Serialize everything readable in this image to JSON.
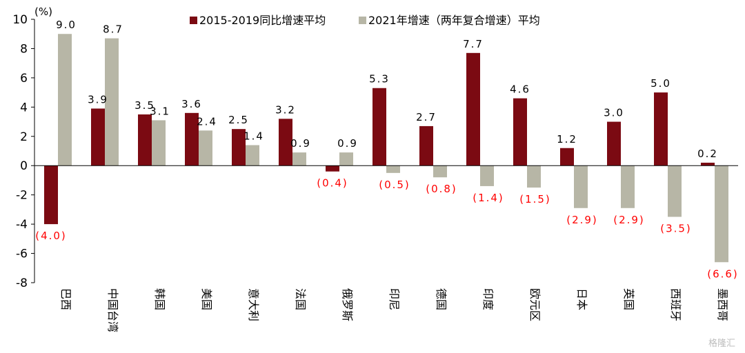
{
  "chart_data": {
    "type": "bar",
    "unit": "(%)",
    "categories": [
      "巴西",
      "中国台湾",
      "韩国",
      "美国",
      "意大利",
      "法国",
      "俄罗斯",
      "印尼",
      "德国",
      "印度",
      "欧元区",
      "日本",
      "英国",
      "西班牙",
      "墨西哥"
    ],
    "series": [
      {
        "name": "2015-2019同比增速平均",
        "color": "#7b0a12",
        "values": [
          -4.0,
          3.9,
          3.5,
          3.6,
          2.5,
          3.2,
          -0.4,
          5.3,
          2.7,
          7.7,
          4.6,
          1.2,
          3.0,
          5.0,
          0.2
        ],
        "labels": [
          "(4.0)",
          "3.9",
          "3.5",
          "3.6",
          "2.5",
          "3.2",
          "(0.4)",
          "5.3",
          "2.7",
          "7.7",
          "4.6",
          "1.2",
          "3.0",
          "5.0",
          "0.2"
        ]
      },
      {
        "name": "2021年增速（两年复合增速）平均",
        "color": "#b7b6a6",
        "values": [
          9.0,
          8.7,
          3.1,
          2.4,
          1.4,
          0.9,
          0.9,
          -0.5,
          -0.8,
          -1.4,
          -1.5,
          -2.9,
          -2.9,
          -3.5,
          -6.6
        ],
        "labels": [
          "9.0",
          "8.7",
          "3.1",
          "2.4",
          "1.4",
          "0.9",
          "0.9",
          "(0.5)",
          "(0.8)",
          "(1.4)",
          "(1.5)",
          "(2.9)",
          "(2.9)",
          "(3.5)",
          "(6.6)"
        ]
      }
    ],
    "ylim": [
      -8,
      10
    ],
    "yticks": [
      -8,
      -6,
      -4,
      -2,
      0,
      2,
      4,
      6,
      8,
      10
    ],
    "negative_label_color": "#ff0000",
    "legend_position": "top",
    "grid": false
  },
  "watermark": "格隆汇"
}
